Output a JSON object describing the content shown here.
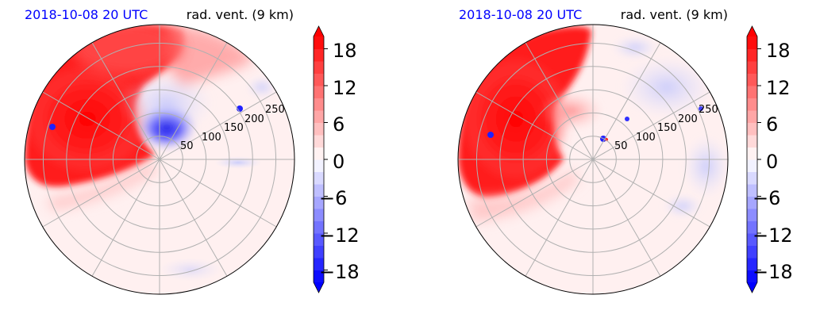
{
  "chart_data": [
    {
      "type": "heatmap",
      "projection": "polar",
      "title_left": "2018-10-08 20 UTC",
      "title_right": "rad. vent. (9 km)",
      "title_left_color": "#0000ff",
      "radial_ticks": [
        "50",
        "100",
        "150",
        "200",
        "250"
      ],
      "radial_tick_values": [
        50,
        100,
        150,
        200,
        250
      ],
      "rlim": [
        0,
        290
      ],
      "angular_gridlines_deg": [
        0,
        30,
        60,
        90,
        120,
        150,
        180,
        210,
        240,
        270,
        300,
        330
      ],
      "grid": true,
      "field_description_colors": {
        "positive": "#ff0000",
        "negative": "#0000ff",
        "zero": "#ffffff"
      },
      "colorbar": {
        "ticks": [
          "18",
          "12",
          "6",
          "0",
          "−6",
          "−12",
          "−18"
        ],
        "tick_values": [
          18,
          12,
          6,
          0,
          -6,
          -12,
          -18
        ],
        "range": [
          -20,
          20
        ],
        "extend": "both"
      }
    },
    {
      "type": "heatmap",
      "projection": "polar",
      "title_left": "2018-10-08 20 UTC",
      "title_right": "rad. vent. (9 km)",
      "title_left_color": "#0000ff",
      "radial_ticks": [
        "50",
        "100",
        "150",
        "200",
        "250"
      ],
      "radial_tick_values": [
        50,
        100,
        150,
        200,
        250
      ],
      "rlim": [
        0,
        290
      ],
      "angular_gridlines_deg": [
        0,
        30,
        60,
        90,
        120,
        150,
        180,
        210,
        240,
        270,
        300,
        330
      ],
      "grid": true,
      "field_description_colors": {
        "positive": "#ff0000",
        "negative": "#0000ff",
        "zero": "#ffffff"
      },
      "colorbar": {
        "ticks": [
          "18",
          "12",
          "6",
          "0",
          "−6",
          "−12",
          "−18"
        ],
        "tick_values": [
          18,
          12,
          6,
          0,
          -6,
          -12,
          -18
        ],
        "range": [
          -20,
          20
        ],
        "extend": "both"
      }
    }
  ]
}
